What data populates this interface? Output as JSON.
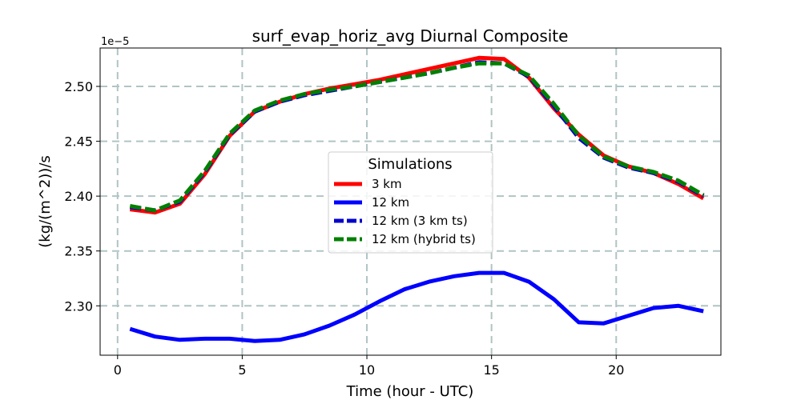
{
  "chart_data": {
    "type": "line",
    "title": "surf_evap_horiz_avg Diurnal Composite",
    "xlabel": "Time (hour - UTC)",
    "ylabel": "(kg/(m^2))/s",
    "y_offset_label": "1e−5",
    "xlim": [
      -0.7,
      24.2
    ],
    "ylim": [
      2.255,
      2.535
    ],
    "x_ticks": [
      0,
      5,
      10,
      15,
      20
    ],
    "x_tick_labels": [
      "0",
      "5",
      "10",
      "15",
      "20"
    ],
    "y_ticks": [
      2.3,
      2.35,
      2.4,
      2.45,
      2.5
    ],
    "y_tick_labels": [
      "2.30",
      "2.35",
      "2.40",
      "2.45",
      "2.50"
    ],
    "grid": true,
    "legend": {
      "title": "Simulations",
      "placement": "center"
    },
    "x": [
      0.5,
      1.5,
      2.5,
      3.5,
      4.5,
      5.5,
      6.5,
      7.5,
      8.5,
      9.5,
      10.5,
      11.5,
      12.5,
      13.5,
      14.5,
      15.5,
      16.5,
      17.5,
      18.5,
      19.5,
      20.5,
      21.5,
      22.5,
      23.5
    ],
    "series": [
      {
        "name": "3 km",
        "color": "#ff0000",
        "dash": "solid",
        "values": [
          2.388,
          2.385,
          2.393,
          2.42,
          2.455,
          2.477,
          2.486,
          2.493,
          2.498,
          2.502,
          2.506,
          2.511,
          2.516,
          2.521,
          2.526,
          2.525,
          2.508,
          2.48,
          2.456,
          2.437,
          2.427,
          2.421,
          2.411,
          2.398
        ]
      },
      {
        "name": "12 km",
        "color": "#0000ff",
        "dash": "solid",
        "values": [
          2.279,
          2.272,
          2.269,
          2.27,
          2.27,
          2.268,
          2.269,
          2.274,
          2.282,
          2.292,
          2.304,
          2.315,
          2.322,
          2.327,
          2.33,
          2.33,
          2.322,
          2.306,
          2.285,
          2.284,
          2.291,
          2.298,
          2.3,
          2.295
        ]
      },
      {
        "name": "12 km (3 km ts)",
        "color": "#0000cc",
        "dash": "dashed",
        "values": [
          2.39,
          2.387,
          2.395,
          2.422,
          2.456,
          2.477,
          2.486,
          2.492,
          2.496,
          2.5,
          2.504,
          2.508,
          2.512,
          2.517,
          2.522,
          2.521,
          2.509,
          2.482,
          2.453,
          2.435,
          2.426,
          2.421,
          2.413,
          2.4
        ]
      },
      {
        "name": "12 km (hybrid ts)",
        "color": "#008000",
        "dash": "dashed",
        "values": [
          2.391,
          2.387,
          2.396,
          2.423,
          2.457,
          2.478,
          2.487,
          2.493,
          2.497,
          2.5,
          2.504,
          2.508,
          2.512,
          2.517,
          2.521,
          2.521,
          2.51,
          2.484,
          2.455,
          2.436,
          2.427,
          2.422,
          2.414,
          2.401
        ]
      }
    ]
  }
}
